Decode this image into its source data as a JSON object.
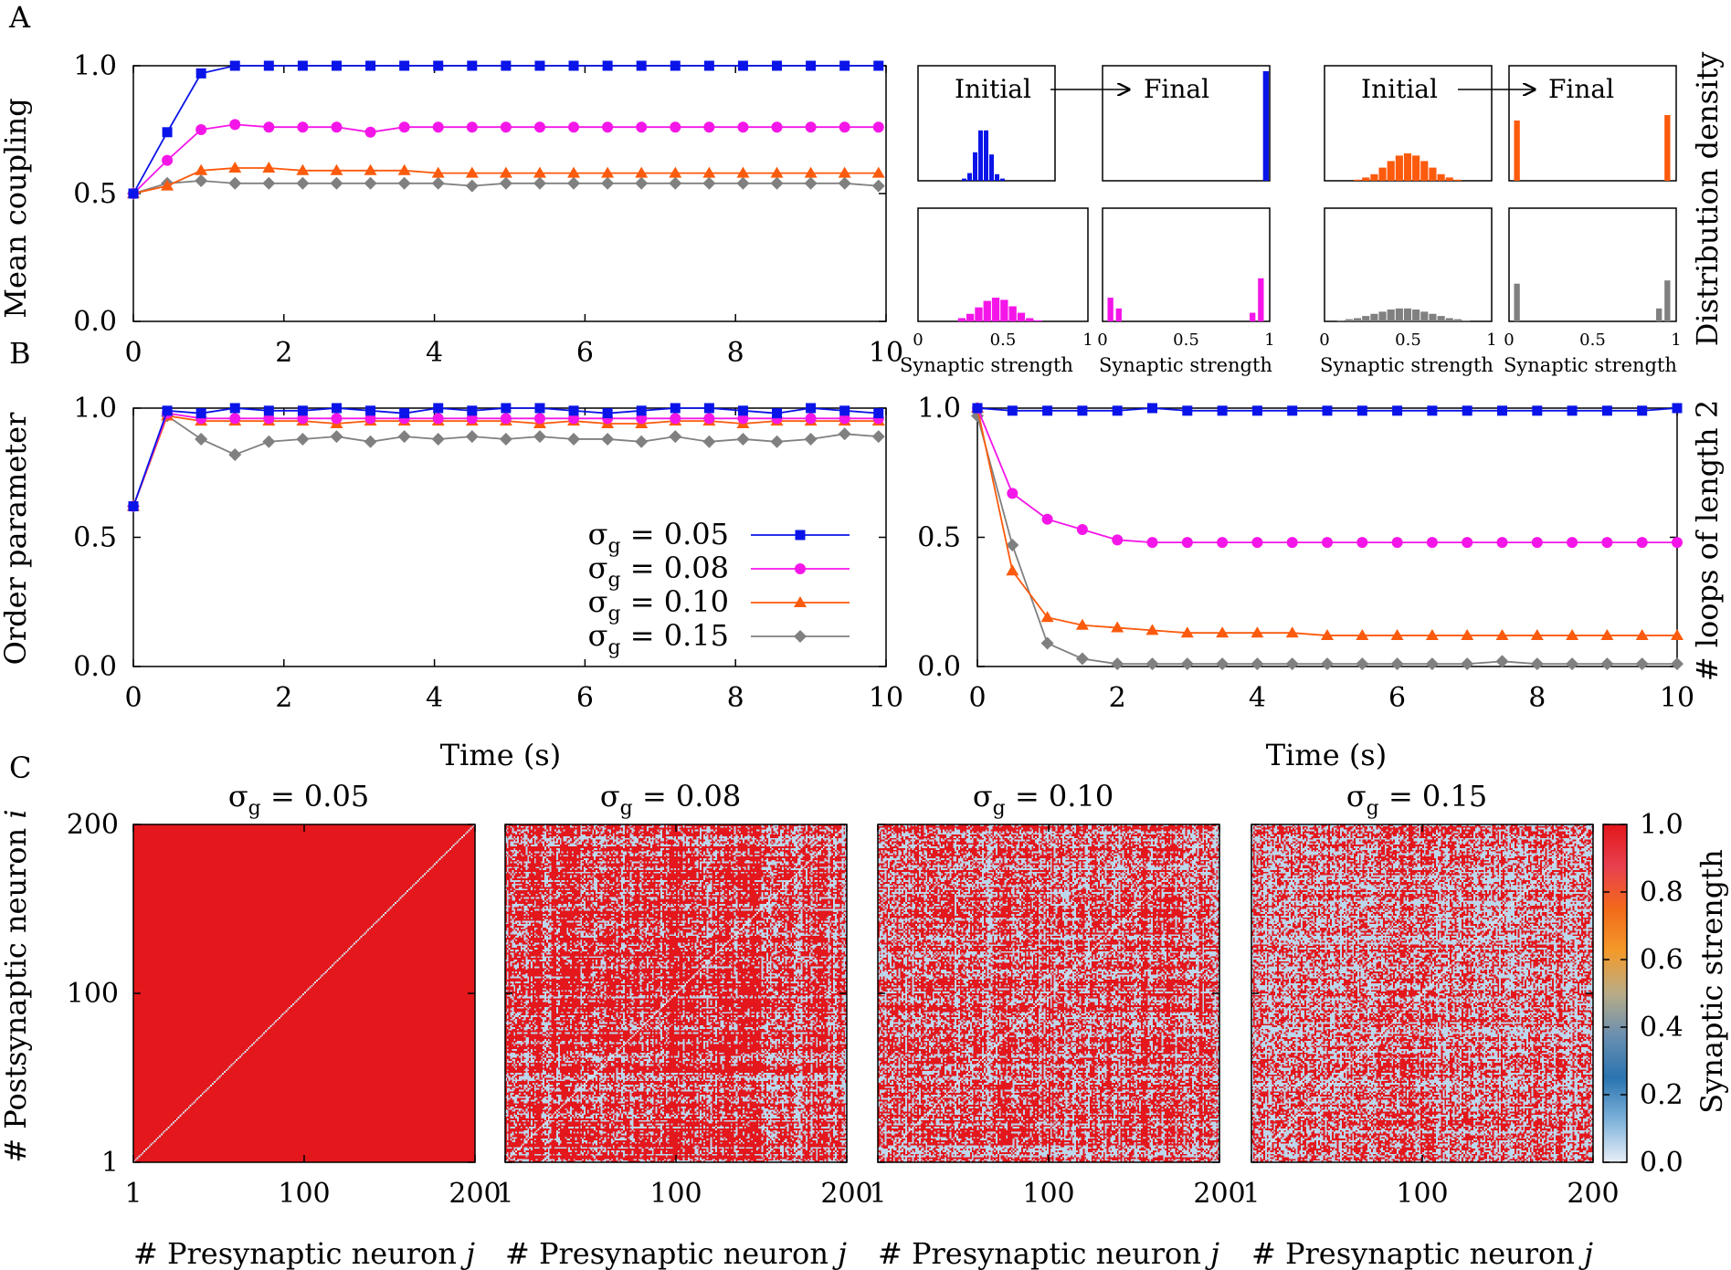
{
  "panel_letters": [
    "A",
    "B",
    "C"
  ],
  "legend": {
    "prefix": "σ",
    "subscript": "g",
    "entries": [
      " = 0.05",
      " = 0.08",
      " = 0.10",
      " = 0.15"
    ]
  },
  "colors": {
    "s005": "#0a14e8",
    "s008": "#f416e8",
    "s010": "#fc5a0c",
    "s015": "#808080",
    "heat_high": "#e3171c",
    "heat_low": "#bcd6eb"
  },
  "hist_labels": {
    "initial": "Initial",
    "final": "Final"
  },
  "chart_data": [
    {
      "id": "A-main",
      "type": "line",
      "title": "",
      "xlabel": "",
      "ylabel": "Mean coupling",
      "xlim": [
        0,
        10
      ],
      "ylim": [
        0,
        1
      ],
      "xticks": [
        "0",
        "2",
        "4",
        "6",
        "8",
        "10"
      ],
      "yticks": [
        "0.0",
        "0.5",
        "1.0"
      ],
      "x": [
        0,
        0.45,
        0.9,
        1.35,
        1.8,
        2.25,
        2.7,
        3.15,
        3.6,
        4.05,
        4.5,
        4.95,
        5.4,
        5.85,
        6.3,
        6.75,
        7.2,
        7.65,
        8.1,
        8.55,
        9.0,
        9.45,
        9.9
      ],
      "series": [
        {
          "key": "s005",
          "marker": "square",
          "values": [
            0.5,
            0.74,
            0.97,
            1.0,
            1.0,
            1.0,
            1.0,
            1.0,
            1.0,
            1.0,
            1.0,
            1.0,
            1.0,
            1.0,
            1.0,
            1.0,
            1.0,
            1.0,
            1.0,
            1.0,
            1.0,
            1.0,
            1.0
          ]
        },
        {
          "key": "s008",
          "marker": "circle",
          "values": [
            0.5,
            0.63,
            0.75,
            0.77,
            0.76,
            0.76,
            0.76,
            0.74,
            0.76,
            0.76,
            0.76,
            0.76,
            0.76,
            0.76,
            0.76,
            0.76,
            0.76,
            0.76,
            0.76,
            0.76,
            0.76,
            0.76,
            0.76
          ]
        },
        {
          "key": "s010",
          "marker": "triangle",
          "values": [
            0.5,
            0.53,
            0.59,
            0.6,
            0.6,
            0.59,
            0.59,
            0.59,
            0.59,
            0.58,
            0.58,
            0.58,
            0.58,
            0.58,
            0.58,
            0.58,
            0.58,
            0.58,
            0.58,
            0.58,
            0.58,
            0.58,
            0.58
          ]
        },
        {
          "key": "s015",
          "marker": "diamond",
          "values": [
            0.5,
            0.54,
            0.55,
            0.54,
            0.54,
            0.54,
            0.54,
            0.54,
            0.54,
            0.54,
            0.53,
            0.54,
            0.54,
            0.54,
            0.54,
            0.54,
            0.54,
            0.54,
            0.54,
            0.54,
            0.54,
            0.54,
            0.53
          ]
        }
      ]
    },
    {
      "id": "A-hist",
      "type": "bar",
      "ylabel": "Distribution density",
      "xlabel": "Synaptic strength",
      "xticks": [
        "0",
        "0.5",
        "1"
      ],
      "xlim": [
        0,
        1
      ],
      "panels": [
        {
          "key": "s005",
          "stage": "initial",
          "bins": [
            0.34,
            0.38,
            0.42,
            0.46,
            0.5,
            0.54,
            0.58,
            0.62
          ],
          "values": [
            0.02,
            0.07,
            0.26,
            0.46,
            0.46,
            0.24,
            0.06,
            0.02
          ]
        },
        {
          "key": "s005",
          "stage": "final",
          "bins": [
            0.98
          ],
          "values": [
            1.0
          ]
        },
        {
          "key": "s010",
          "stage": "initial",
          "bins": [
            0.2,
            0.25,
            0.3,
            0.35,
            0.4,
            0.45,
            0.5,
            0.55,
            0.6,
            0.65,
            0.7,
            0.75,
            0.8
          ],
          "values": [
            0.01,
            0.03,
            0.06,
            0.12,
            0.18,
            0.23,
            0.25,
            0.23,
            0.18,
            0.12,
            0.06,
            0.03,
            0.01
          ]
        },
        {
          "key": "s010",
          "stage": "final",
          "bins": [
            0.05,
            0.95
          ],
          "values": [
            0.55,
            0.6
          ]
        },
        {
          "key": "s008",
          "stage": "initial",
          "bins": [
            0.26,
            0.31,
            0.36,
            0.41,
            0.46,
            0.51,
            0.56,
            0.61,
            0.66,
            0.71
          ],
          "values": [
            0.03,
            0.07,
            0.13,
            0.19,
            0.22,
            0.2,
            0.14,
            0.08,
            0.03,
            0.01
          ]
        },
        {
          "key": "s008",
          "stage": "final",
          "bins": [
            0.05,
            0.1,
            0.9,
            0.95
          ],
          "values": [
            0.22,
            0.12,
            0.08,
            0.4
          ]
        },
        {
          "key": "s015",
          "stage": "initial",
          "bins": [
            0.1,
            0.15,
            0.2,
            0.25,
            0.3,
            0.35,
            0.4,
            0.45,
            0.5,
            0.55,
            0.6,
            0.65,
            0.7,
            0.75,
            0.8,
            0.85
          ],
          "values": [
            0.01,
            0.02,
            0.03,
            0.05,
            0.07,
            0.09,
            0.11,
            0.12,
            0.12,
            0.11,
            0.09,
            0.07,
            0.05,
            0.03,
            0.02,
            0.01
          ]
        },
        {
          "key": "s015",
          "stage": "final",
          "bins": [
            0.05,
            0.9,
            0.95
          ],
          "values": [
            0.35,
            0.12,
            0.38
          ]
        }
      ]
    },
    {
      "id": "B-left",
      "type": "line",
      "title": "",
      "xlabel": "Time (s)",
      "ylabel": "Order parameter",
      "xlim": [
        0,
        10
      ],
      "ylim": [
        0,
        1
      ],
      "xticks": [
        "0",
        "2",
        "4",
        "6",
        "8",
        "10"
      ],
      "yticks": [
        "0.0",
        "0.5",
        "1.0"
      ],
      "x": [
        0,
        0.45,
        0.9,
        1.35,
        1.8,
        2.25,
        2.7,
        3.15,
        3.6,
        4.05,
        4.5,
        4.95,
        5.4,
        5.85,
        6.3,
        6.75,
        7.2,
        7.65,
        8.1,
        8.55,
        9.0,
        9.45,
        9.9
      ],
      "series": [
        {
          "key": "s005",
          "marker": "square",
          "values": [
            0.62,
            0.99,
            0.98,
            1.0,
            0.99,
            0.99,
            1.0,
            0.99,
            0.98,
            1.0,
            0.99,
            1.0,
            1.0,
            0.99,
            0.98,
            0.99,
            1.0,
            1.0,
            0.99,
            0.98,
            1.0,
            0.99,
            0.98
          ]
        },
        {
          "key": "s008",
          "marker": "circle",
          "values": [
            0.62,
            0.98,
            0.96,
            0.96,
            0.96,
            0.96,
            0.96,
            0.96,
            0.96,
            0.96,
            0.96,
            0.96,
            0.96,
            0.96,
            0.96,
            0.96,
            0.96,
            0.96,
            0.96,
            0.96,
            0.96,
            0.96,
            0.96
          ]
        },
        {
          "key": "s010",
          "marker": "triangle",
          "values": [
            0.62,
            0.97,
            0.95,
            0.95,
            0.95,
            0.95,
            0.94,
            0.95,
            0.95,
            0.95,
            0.95,
            0.95,
            0.94,
            0.95,
            0.94,
            0.94,
            0.95,
            0.95,
            0.94,
            0.95,
            0.95,
            0.95,
            0.95
          ]
        },
        {
          "key": "s015",
          "marker": "diamond",
          "values": [
            0.62,
            0.97,
            0.88,
            0.82,
            0.87,
            0.88,
            0.89,
            0.87,
            0.89,
            0.88,
            0.89,
            0.88,
            0.89,
            0.88,
            0.88,
            0.87,
            0.89,
            0.87,
            0.88,
            0.87,
            0.88,
            0.9,
            0.89
          ]
        }
      ]
    },
    {
      "id": "B-right",
      "type": "line",
      "title": "",
      "xlabel": "Time (s)",
      "ylabel": "# loops of length 2",
      "xlim": [
        0,
        10
      ],
      "ylim": [
        0,
        1
      ],
      "xticks": [
        "0",
        "2",
        "4",
        "6",
        "8",
        "10"
      ],
      "yticks": [
        "0.0",
        "0.5",
        "1.0"
      ],
      "x": [
        0,
        0.5,
        1.0,
        1.5,
        2.0,
        2.5,
        3.0,
        3.5,
        4.0,
        4.5,
        5.0,
        5.5,
        6.0,
        6.5,
        7.0,
        7.5,
        8.0,
        8.5,
        9.0,
        9.5,
        10.0
      ],
      "series": [
        {
          "key": "s005",
          "marker": "square",
          "values": [
            1.0,
            0.99,
            0.99,
            0.99,
            0.99,
            1.0,
            0.99,
            0.99,
            0.99,
            0.99,
            0.99,
            0.99,
            0.99,
            0.99,
            0.99,
            0.99,
            0.99,
            0.99,
            0.99,
            0.99,
            1.0
          ]
        },
        {
          "key": "s008",
          "marker": "circle",
          "values": [
            1.0,
            0.67,
            0.57,
            0.53,
            0.49,
            0.48,
            0.48,
            0.48,
            0.48,
            0.48,
            0.48,
            0.48,
            0.48,
            0.48,
            0.48,
            0.48,
            0.48,
            0.48,
            0.48,
            0.48,
            0.48
          ]
        },
        {
          "key": "s010",
          "marker": "triangle",
          "values": [
            1.0,
            0.37,
            0.19,
            0.16,
            0.15,
            0.14,
            0.13,
            0.13,
            0.13,
            0.13,
            0.12,
            0.12,
            0.12,
            0.12,
            0.12,
            0.12,
            0.12,
            0.12,
            0.12,
            0.12,
            0.12
          ]
        },
        {
          "key": "s015",
          "marker": "diamond",
          "values": [
            0.97,
            0.47,
            0.09,
            0.03,
            0.01,
            0.01,
            0.01,
            0.01,
            0.01,
            0.01,
            0.01,
            0.01,
            0.01,
            0.01,
            0.01,
            0.02,
            0.01,
            0.01,
            0.01,
            0.01,
            0.01
          ]
        }
      ]
    },
    {
      "id": "C-heatmaps",
      "type": "heatmap",
      "xlabel": "# Presynaptic neuron ",
      "xlabel_var": "j",
      "ylabel": "# Postsynaptic neuron ",
      "ylabel_var": "i",
      "xticks": [
        "1",
        "100",
        "200"
      ],
      "yticks": [
        "1",
        "100",
        "200"
      ],
      "xlim": [
        1,
        200
      ],
      "ylim": [
        1,
        200
      ],
      "panels": [
        {
          "key": "s005",
          "title_value": " = 0.05",
          "fraction_strong": 1.0
        },
        {
          "key": "s008",
          "title_value": " = 0.08",
          "fraction_strong": 0.72
        },
        {
          "key": "s010",
          "title_value": " = 0.10",
          "fraction_strong": 0.6
        },
        {
          "key": "s015",
          "title_value": " = 0.15",
          "fraction_strong": 0.5
        }
      ],
      "colorbar": {
        "label": "Synaptic strength",
        "range": [
          0,
          1
        ],
        "ticks": [
          "0.0",
          "0.2",
          "0.4",
          "0.6",
          "0.8",
          "1.0"
        ],
        "stops": [
          "#e8eef8",
          "#7fb2da",
          "#2a74b0",
          "#6a8fb0",
          "#b9ac87",
          "#f39a2a",
          "#f26a1a",
          "#e84050",
          "#e3171c"
        ]
      }
    }
  ]
}
